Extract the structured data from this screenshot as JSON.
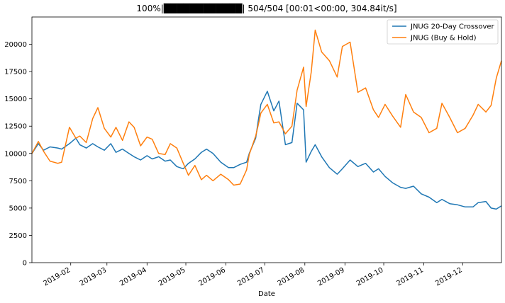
{
  "chart_data": {
    "type": "line",
    "title": "100%|████████████| 504/504 [00:01<00:00, 304.84it/s]",
    "xlabel": "Date",
    "ylabel": "",
    "xlim": [
      "2019-01-02",
      "2019-12-31"
    ],
    "ylim": [
      0,
      22500
    ],
    "yticks": [
      0,
      2500,
      5000,
      7500,
      10000,
      12500,
      15000,
      17500,
      20000
    ],
    "xticks": [
      {
        "date": "2019-02-01",
        "label": "2019-02"
      },
      {
        "date": "2019-03-01",
        "label": "2019-03"
      },
      {
        "date": "2019-04-01",
        "label": "2019-04"
      },
      {
        "date": "2019-05-01",
        "label": "2019-05"
      },
      {
        "date": "2019-06-01",
        "label": "2019-06"
      },
      {
        "date": "2019-07-01",
        "label": "2019-07"
      },
      {
        "date": "2019-08-01",
        "label": "2019-08"
      },
      {
        "date": "2019-09-01",
        "label": "2019-09"
      },
      {
        "date": "2019-10-01",
        "label": "2019-10"
      },
      {
        "date": "2019-11-01",
        "label": "2019-11"
      },
      {
        "date": "2019-12-01",
        "label": "2019-12"
      }
    ],
    "grid": false,
    "legend_position": "top-right",
    "series": [
      {
        "name": "JNUG 20-Day Crossover",
        "color": "#1f77b4",
        "x": [
          "2019-01-02",
          "2019-01-07",
          "2019-01-11",
          "2019-01-16",
          "2019-01-22",
          "2019-01-25",
          "2019-01-31",
          "2019-02-05",
          "2019-02-08",
          "2019-02-13",
          "2019-02-18",
          "2019-02-22",
          "2019-02-27",
          "2019-03-04",
          "2019-03-08",
          "2019-03-13",
          "2019-03-18",
          "2019-03-22",
          "2019-03-27",
          "2019-04-01",
          "2019-04-05",
          "2019-04-10",
          "2019-04-15",
          "2019-04-19",
          "2019-04-24",
          "2019-04-29",
          "2019-05-03",
          "2019-05-08",
          "2019-05-13",
          "2019-05-17",
          "2019-05-22",
          "2019-05-28",
          "2019-06-03",
          "2019-06-07",
          "2019-06-12",
          "2019-06-17",
          "2019-06-19",
          "2019-06-24",
          "2019-06-26",
          "2019-06-28",
          "2019-07-03",
          "2019-07-08",
          "2019-07-12",
          "2019-07-17",
          "2019-07-22",
          "2019-07-26",
          "2019-07-31",
          "2019-08-02",
          "2019-08-06",
          "2019-08-09",
          "2019-08-14",
          "2019-08-20",
          "2019-08-26",
          "2019-08-30",
          "2019-09-05",
          "2019-09-11",
          "2019-09-17",
          "2019-09-23",
          "2019-09-27",
          "2019-10-02",
          "2019-10-08",
          "2019-10-14",
          "2019-10-18",
          "2019-10-24",
          "2019-10-30",
          "2019-11-05",
          "2019-11-11",
          "2019-11-15",
          "2019-11-21",
          "2019-11-27",
          "2019-12-03",
          "2019-12-09",
          "2019-12-13",
          "2019-12-19",
          "2019-12-23",
          "2019-12-27",
          "2019-12-31"
        ],
        "y": [
          10000,
          10900,
          10300,
          10600,
          10500,
          10400,
          10900,
          11400,
          10800,
          10500,
          10900,
          10600,
          10300,
          10900,
          10100,
          10400,
          10000,
          9700,
          9400,
          9800,
          9500,
          9700,
          9300,
          9400,
          8800,
          8600,
          9100,
          9500,
          10100,
          10400,
          10000,
          9200,
          8700,
          8700,
          9000,
          9200,
          10000,
          11400,
          13000,
          14500,
          15700,
          13900,
          14800,
          10800,
          11000,
          14600,
          14000,
          9200,
          10200,
          10800,
          9700,
          8700,
          8100,
          8600,
          9400,
          8800,
          9100,
          8300,
          8600,
          7900,
          7300,
          6900,
          6800,
          7000,
          6300,
          6000,
          5500,
          5800,
          5400,
          5300,
          5100,
          5100,
          5500,
          5600,
          5000,
          4900,
          5200
        ]
      },
      {
        "name": "JNUG (Buy & Hold)",
        "color": "#ff7f0e",
        "x": [
          "2019-01-02",
          "2019-01-07",
          "2019-01-11",
          "2019-01-16",
          "2019-01-22",
          "2019-01-25",
          "2019-01-31",
          "2019-02-05",
          "2019-02-08",
          "2019-02-13",
          "2019-02-18",
          "2019-02-22",
          "2019-02-27",
          "2019-03-04",
          "2019-03-08",
          "2019-03-13",
          "2019-03-18",
          "2019-03-22",
          "2019-03-27",
          "2019-04-01",
          "2019-04-05",
          "2019-04-10",
          "2019-04-15",
          "2019-04-19",
          "2019-04-24",
          "2019-04-29",
          "2019-05-03",
          "2019-05-08",
          "2019-05-13",
          "2019-05-17",
          "2019-05-22",
          "2019-05-28",
          "2019-06-03",
          "2019-06-07",
          "2019-06-12",
          "2019-06-17",
          "2019-06-19",
          "2019-06-24",
          "2019-06-26",
          "2019-06-28",
          "2019-07-03",
          "2019-07-08",
          "2019-07-12",
          "2019-07-17",
          "2019-07-22",
          "2019-07-26",
          "2019-07-31",
          "2019-08-02",
          "2019-08-06",
          "2019-08-09",
          "2019-08-14",
          "2019-08-20",
          "2019-08-26",
          "2019-08-30",
          "2019-09-05",
          "2019-09-11",
          "2019-09-17",
          "2019-09-23",
          "2019-09-27",
          "2019-10-02",
          "2019-10-08",
          "2019-10-14",
          "2019-10-18",
          "2019-10-24",
          "2019-10-30",
          "2019-11-05",
          "2019-11-11",
          "2019-11-15",
          "2019-11-21",
          "2019-11-27",
          "2019-12-03",
          "2019-12-09",
          "2019-12-13",
          "2019-12-19",
          "2019-12-23",
          "2019-12-27",
          "2019-12-31"
        ],
        "y": [
          10000,
          11100,
          10200,
          9300,
          9100,
          9200,
          12400,
          11400,
          11600,
          11000,
          13200,
          14200,
          12300,
          11500,
          12400,
          11200,
          12900,
          12400,
          10700,
          11500,
          11300,
          10000,
          9900,
          10900,
          10500,
          9100,
          8000,
          8900,
          7600,
          8000,
          7500,
          8100,
          7600,
          7100,
          7200,
          8500,
          9900,
          11600,
          12600,
          13700,
          14500,
          12800,
          12900,
          11800,
          12500,
          15800,
          17900,
          14300,
          17500,
          21300,
          19300,
          18500,
          17000,
          19800,
          20200,
          15600,
          16000,
          14000,
          13300,
          14500,
          13400,
          12400,
          15400,
          13800,
          13300,
          11900,
          12300,
          14600,
          13300,
          11900,
          12300,
          13500,
          14500,
          13800,
          14400,
          16900,
          18500
        ]
      }
    ]
  }
}
